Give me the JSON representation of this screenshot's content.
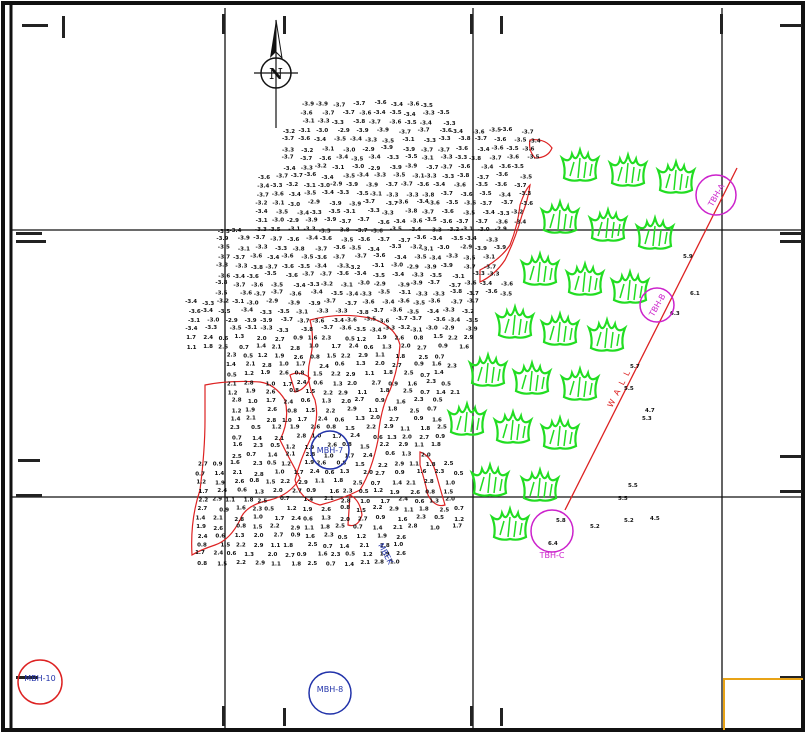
{
  "map": {
    "north_label": "N",
    "wall_label": "WALL",
    "boreholes": [
      {
        "id": "tbh-a",
        "label": "TBH-A",
        "color": "#cc22cc"
      },
      {
        "id": "tbh-b",
        "label": "TBH-B",
        "color": "#cc22cc"
      },
      {
        "id": "tbh-c",
        "label": "TBH-C",
        "color": "#cc22cc"
      },
      {
        "id": "mbh-7",
        "label": "MBH-7",
        "color": "#2233aa"
      },
      {
        "id": "mbh-8",
        "label": "MBH-8",
        "color": "#2233aa"
      },
      {
        "id": "mbh-10",
        "label": "MBH-10",
        "color": "#dd2222"
      }
    ],
    "spot_values_east": [
      "5.5",
      "4.7",
      "5.5",
      "5.3",
      "5.5",
      "5.2",
      "5.2",
      "4.5",
      "5.7",
      "5.8",
      "6.4",
      "6.3",
      "5.9",
      "6.1"
    ],
    "spot_values_field": [
      "-3.9",
      "-3.9",
      "-3.7",
      "-3.7",
      "-3.6",
      "-3.4",
      "-3.6",
      "-3.5",
      "-3.6",
      "-3.7",
      "-3.7",
      "-3.6",
      "-3.4",
      "-3.5",
      "-3.4",
      "-3.3",
      "-3.5",
      "-3.1",
      "-3.3",
      "-3.3",
      "-3.8",
      "-3.7",
      "-3.6",
      "-3.5",
      "-3.4",
      "-3.3",
      "-3.2",
      "-3.1",
      "-3.0",
      "-2.9"
    ],
    "colors": {
      "grid": "#111111",
      "tree": "#22dd22",
      "contour": "#dd2222",
      "wall": "#dd2222",
      "accent_orange": "#e8a317"
    }
  }
}
